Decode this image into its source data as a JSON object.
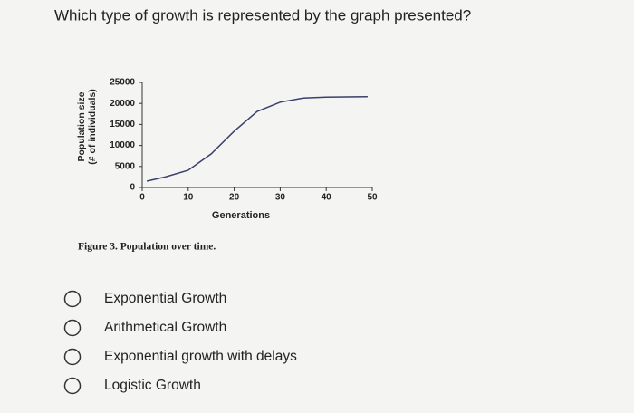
{
  "question": "Which type of growth is represented by the graph presented?",
  "chart_data": {
    "type": "line",
    "ylabel": [
      "Population size",
      "(# of individuals)"
    ],
    "xlabel": "Generations",
    "x": [
      1,
      5,
      10,
      15,
      20,
      25,
      30,
      35,
      40,
      49
    ],
    "series": [
      {
        "color": "#3a3f6b",
        "values": [
          1500,
          2500,
          4100,
          8000,
          13400,
          18100,
          20300,
          21300,
          21500,
          21600
        ]
      }
    ],
    "xlim": [
      0,
      50
    ],
    "xticks": [
      0,
      10,
      20,
      30,
      40,
      50
    ],
    "ylim": [
      0,
      25000
    ],
    "yticks": [
      0,
      5000,
      10000,
      15000,
      20000,
      25000
    ]
  },
  "caption": "Figure 3. Population over time.",
  "options": [
    "Exponential Growth",
    "Arithmetical Growth",
    "Exponential growth with delays",
    "Logistic Growth"
  ]
}
